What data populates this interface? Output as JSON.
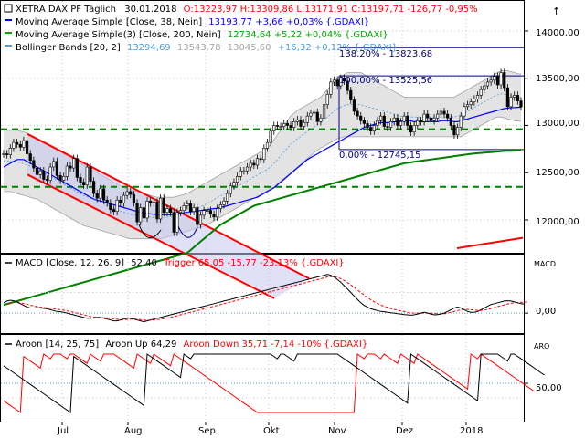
{
  "header": {
    "line1": {
      "prefix": "XETRA DAX PF Täglich",
      "date": "30.01.2018",
      "ohlc": "O:13223,97 H:13309,86 L:13171,91 C:13197,71 -126,77 -0,95%",
      "color_neg": "#ff0000"
    },
    "line2": {
      "label": "Moving Average Simple [Close, 38, Nein]",
      "value": "13193,77 +3,66 +0,03% {.GDAXI}",
      "color": "#0000ff"
    },
    "line3": {
      "label": "Moving Average Simple(3) [Close, 200, Nein]",
      "value": "12734,64 +5,22 +0,04% {.GDAXI}",
      "color": "#00aa00"
    },
    "line4": {
      "label": "Bollinger Bands [20, 2]",
      "v1": "13294,69",
      "v2": "13543,78",
      "v3": "13045,60",
      "rest": "+16,32 +0,12% {.GDAXI}",
      "color": "#4f9dd9"
    }
  },
  "macd_header": {
    "label": "MACD [Close, 12, 26, 9]",
    "macd_value": "52,40",
    "trigger": "Trigger 65,05 -15,77 -23,13% {.GDAXI}",
    "trigger_color": "#ff0000"
  },
  "aroon_header": {
    "label": "Aroon [14, 25, 75]",
    "up": "Aroon Up 64,29",
    "down": "Aroon Down 35,71 -7,14 -10% {.GDAXI}",
    "down_color": "#ff0000"
  },
  "axis": {
    "months": [
      "Jul",
      "Aug",
      "Sep",
      "Okt",
      "Nov",
      "Dez",
      "2018"
    ],
    "price_ticks": [
      "14000,00",
      "13500,00",
      "13000,00",
      "12500,00",
      "12000,00"
    ],
    "macd_title": "MACD",
    "macd_tick": "0,00",
    "aroon_title": "ARO",
    "aroon_tick": "50,00",
    "arrow": "↑"
  },
  "fib": {
    "l1": "138,20% - 13823,68",
    "l2": "100,00% - 13525,56",
    "l3": "0,00% - 12745,15"
  },
  "chart_data": {
    "type": "line",
    "price_ylim": [
      11650,
      14250
    ],
    "levels": {
      "fib_138": 13823.68,
      "fib_100": 13525.56,
      "fib_0": 12745.15,
      "support_upper": 12960,
      "support_lower": 12350
    },
    "price_close": [
      12700,
      12690,
      12760,
      12820,
      12800,
      12770,
      12840,
      12700,
      12630,
      12550,
      12480,
      12520,
      12430,
      12420,
      12560,
      12620,
      12470,
      12420,
      12460,
      12570,
      12550,
      12650,
      12450,
      12400,
      12370,
      12560,
      12410,
      12280,
      12230,
      12330,
      12210,
      12180,
      12110,
      12090,
      12210,
      12180,
      12260,
      12300,
      12270,
      12180,
      11980,
      12130,
      12020,
      12200,
      12180,
      12190,
      12010,
      12230,
      12080,
      12120,
      12080,
      11870,
      12080,
      12100,
      12150,
      12170,
      12090,
      12130,
      11950,
      12050,
      12100,
      12100,
      12060,
      12030,
      12120,
      12160,
      12200,
      12280,
      12360,
      12400,
      12460,
      12520,
      12520,
      12560,
      12600,
      12580,
      12650,
      12640,
      12760,
      12820,
      12940,
      13000,
      12990,
      12990,
      13020,
      13000,
      12980,
      13040,
      13060,
      12990,
      13030,
      13100,
      13130,
      13140,
      13040,
      13080,
      13220,
      13330,
      13460,
      13480,
      13420,
      13500,
      13470,
      13370,
      13270,
      13150,
      13100,
      13050,
      13020,
      12980,
      12940,
      13000,
      13050,
      13100,
      12990,
      12980,
      13040,
      13080,
      13000,
      13040,
      13100,
      13000,
      12930,
      13000,
      13050,
      13040,
      13120,
      13080,
      13050,
      13080,
      13120,
      13150,
      13120,
      13080,
      13000,
      12900,
      12980,
      13100,
      13200,
      13220,
      13250,
      13280,
      13320,
      13380,
      13420,
      13460,
      13480,
      13520,
      13430,
      13560,
      13400,
      13200,
      13300,
      13320,
      13260,
      13198
    ],
    "sma38": [
      12560,
      12580,
      12600,
      12620,
      12640,
      12640,
      12640,
      12620,
      12600,
      12580,
      12560,
      12540,
      12520,
      12500,
      12480,
      12460,
      12440,
      12420,
      12400,
      12380,
      12360,
      12340,
      12320,
      12300,
      12280,
      12260,
      12240,
      12220,
      12210,
      12200,
      12190,
      12180,
      12170,
      12160,
      12150,
      12140,
      12130,
      12120,
      12110,
      12100,
      12090,
      12080,
      12075,
      12070,
      12065,
      12060,
      12055,
      12055,
      12055,
      12055,
      12055,
      12060,
      12065,
      12070,
      12075,
      12080,
      12085,
      12090,
      12095,
      12100,
      12105,
      12110,
      12115,
      12120,
      12125,
      12130,
      12140,
      12150,
      12160,
      12170,
      12180,
      12190,
      12200,
      12210,
      12220,
      12230,
      12240,
      12260,
      12280,
      12300,
      12320,
      12340,
      12370,
      12400,
      12430,
      12460,
      12490,
      12520,
      12550,
      12580,
      12610,
      12640,
      12660,
      12680,
      12700,
      12720,
      12740,
      12760,
      12780,
      12800,
      12820,
      12840,
      12860,
      12880,
      12900,
      12920,
      12940,
      12960,
      12980,
      12990,
      13000,
      13010,
      13020,
      13030,
      13030,
      13030,
      13030,
      13040,
      13040,
      13050,
      13050,
      13050,
      13050,
      13040,
      13040,
      13040,
      13040,
      13040,
      13040,
      13040,
      13040,
      13050,
      13050,
      13050,
      13050,
      13040,
      13040,
      13050,
      13060,
      13070,
      13080,
      13090,
      13100,
      13110,
      13120,
      13130,
      13140,
      13150,
      13160,
      13170,
      13180,
      13185,
      13188,
      13190,
      13192,
      13194
    ],
    "sma200": [
      11100,
      11110,
      11120,
      11130,
      11140,
      11150,
      11160,
      11170,
      11180,
      11190,
      11200,
      11210,
      11220,
      11230,
      11240,
      11250,
      11260,
      11270,
      11280,
      11290,
      11300,
      11310,
      11320,
      11330,
      11340,
      11350,
      11360,
      11370,
      11380,
      11390,
      11400,
      11410,
      11420,
      11430,
      11440,
      11450,
      11460,
      11470,
      11480,
      11490,
      11500,
      11510,
      11520,
      11530,
      11540,
      11550,
      11560,
      11570,
      11580,
      11590,
      11600,
      11610,
      11620,
      11630,
      11640,
      11650,
      11680,
      11710,
      11740,
      11770,
      11800,
      11830,
      11860,
      11890,
      11920,
      11950,
      11970,
      11990,
      12010,
      12030,
      12050,
      12070,
      12090,
      12110,
      12130,
      12150,
      12160,
      12170,
      12180,
      12190,
      12200,
      12210,
      12220,
      12230,
      12240,
      12250,
      12260,
      12270,
      12280,
      12290,
      12300,
      12310,
      12320,
      12330,
      12340,
      12350,
      12360,
      12370,
      12380,
      12390,
      12400,
      12410,
      12420,
      12430,
      12440,
      12450,
      12460,
      12470,
      12480,
      12490,
      12500,
      12510,
      12520,
      12530,
      12540,
      12550,
      12560,
      12570,
      12580,
      12590,
      12600,
      12605,
      12610,
      12615,
      12620,
      12625,
      12630,
      12635,
      12640,
      12645,
      12650,
      12655,
      12660,
      12665,
      12670,
      12675,
      12680,
      12685,
      12690,
      12695,
      12700,
      12703,
      12706,
      12709,
      12712,
      12715,
      12718,
      12721,
      12724,
      12727,
      12730,
      12731,
      12732,
      12733,
      12734,
      12735
    ],
    "bollinger_upper": [
      12950,
      12950,
      12950,
      12950,
      12950,
      12940,
      12930,
      12920,
      12900,
      12880,
      12860,
      12840,
      12820,
      12800,
      12780,
      12760,
      12740,
      12720,
      12700,
      12680,
      12660,
      12640,
      12620,
      12600,
      12580,
      12560,
      12540,
      12520,
      12500,
      12480,
      12460,
      12440,
      12420,
      12400,
      12380,
      12360,
      12340,
      12330,
      12320,
      12310,
      12300,
      12290,
      12280,
      12270,
      12260,
      12250,
      12240,
      12240,
      12240,
      12240,
      12240,
      12240,
      12250,
      12260,
      12270,
      12280,
      12300,
      12320,
      12340,
      12360,
      12380,
      12400,
      12420,
      12440,
      12460,
      12480,
      12500,
      12520,
      12540,
      12560,
      12580,
      12600,
      12620,
      12640,
      12660,
      12680,
      12700,
      12720,
      12740,
      12760,
      12800,
      12850,
      12900,
      12950,
      13000,
      13050,
      13100,
      13130,
      13160,
      13180,
      13200,
      13220,
      13240,
      13260,
      13280,
      13300,
      13340,
      13380,
      13420,
      13460,
      13500,
      13520,
      13540,
      13560,
      13560,
      13560,
      13560,
      13560,
      13540,
      13520,
      13500,
      13480,
      13460,
      13440,
      13420,
      13400,
      13380,
      13360,
      13340,
      13320,
      13300,
      13300,
      13300,
      13300,
      13300,
      13300,
      13300,
      13300,
      13300,
      13300,
      13300,
      13300,
      13300,
      13300,
      13300,
      13300,
      13320,
      13340,
      13360,
      13380,
      13400,
      13420,
      13440,
      13460,
      13480,
      13500,
      13520,
      13540,
      13560,
      13580,
      13580,
      13580,
      13570,
      13560,
      13550,
      13544
    ],
    "bollinger_lower": [
      12300,
      12300,
      12300,
      12290,
      12280,
      12270,
      12260,
      12250,
      12240,
      12230,
      12220,
      12200,
      12180,
      12160,
      12140,
      12120,
      12100,
      12080,
      12060,
      12040,
      12020,
      12000,
      11980,
      11960,
      11940,
      11930,
      11920,
      11910,
      11900,
      11890,
      11880,
      11870,
      11860,
      11850,
      11840,
      11830,
      11820,
      11810,
      11800,
      11800,
      11800,
      11800,
      11800,
      11800,
      11800,
      11800,
      11800,
      11800,
      11810,
      11820,
      11830,
      11840,
      11850,
      11860,
      11870,
      11880,
      11890,
      11900,
      11910,
      11920,
      11930,
      11950,
      11970,
      11990,
      12010,
      12030,
      12050,
      12070,
      12090,
      12110,
      12130,
      12150,
      12170,
      12190,
      12210,
      12230,
      12250,
      12270,
      12290,
      12310,
      12330,
      12350,
      12380,
      12410,
      12440,
      12470,
      12500,
      12530,
      12560,
      12590,
      12620,
      12650,
      12680,
      12710,
      12740,
      12760,
      12780,
      12800,
      12820,
      12840,
      12860,
      12870,
      12880,
      12880,
      12880,
      12880,
      12880,
      12880,
      12880,
      12880,
      12880,
      12880,
      12880,
      12880,
      12880,
      12880,
      12880,
      12880,
      12880,
      12880,
      12880,
      12880,
      12880,
      12880,
      12880,
      12880,
      12880,
      12880,
      12880,
      12880,
      12880,
      12880,
      12880,
      12880,
      12880,
      12880,
      12880,
      12880,
      12900,
      12920,
      12940,
      12960,
      12980,
      13000,
      13020,
      13040,
      13060,
      13080,
      13090,
      13090,
      13080,
      13070,
      13060,
      13050,
      13046,
      13046
    ],
    "channel": {
      "upper_start": [
        0,
        12910
      ],
      "upper_end": [
        100,
        11400
      ],
      "lower_start": [
        0,
        12480
      ],
      "lower_end": [
        100,
        11000
      ]
    },
    "macd": [
      0.6,
      0.7,
      0.75,
      0.72,
      0.65,
      0.55,
      0.45,
      0.35,
      0.3,
      0.3,
      0.32,
      0.3,
      0.28,
      0.25,
      0.2,
      0.15,
      0.1,
      0.08,
      0.05,
      0.0,
      -0.05,
      -0.1,
      -0.15,
      -0.2,
      -0.25,
      -0.3,
      -0.3,
      -0.28,
      -0.25,
      -0.25,
      -0.3,
      -0.35,
      -0.4,
      -0.45,
      -0.45,
      -0.4,
      -0.35,
      -0.3,
      -0.3,
      -0.35,
      -0.4,
      -0.45,
      -0.5,
      -0.45,
      -0.4,
      -0.35,
      -0.3,
      -0.25,
      -0.2,
      -0.15,
      -0.1,
      -0.05,
      0.0,
      0.05,
      0.1,
      0.15,
      0.2,
      0.25,
      0.3,
      0.35,
      0.4,
      0.45,
      0.5,
      0.55,
      0.6,
      0.65,
      0.7,
      0.75,
      0.8,
      0.85,
      0.9,
      0.95,
      1.0,
      1.05,
      1.1,
      1.15,
      1.2,
      1.25,
      1.3,
      1.35,
      1.4,
      1.45,
      1.5,
      1.55,
      1.6,
      1.65,
      1.7,
      1.75,
      1.8,
      1.85,
      1.9,
      1.95,
      2.0,
      2.05,
      2.1,
      2.15,
      2.2,
      2.25,
      2.2,
      2.1,
      1.95,
      1.8,
      1.6,
      1.4,
      1.2,
      1.0,
      0.8,
      0.6,
      0.45,
      0.35,
      0.25,
      0.2,
      0.15,
      0.1,
      0.08,
      0.05,
      0.02,
      0.0,
      -0.03,
      -0.05,
      -0.08,
      -0.1,
      -0.12,
      -0.1,
      -0.05,
      0.0,
      0.05,
      0.0,
      -0.05,
      -0.1,
      -0.08,
      -0.05,
      0.0,
      0.1,
      0.2,
      0.3,
      0.35,
      0.3,
      0.2,
      0.1,
      0.05,
      0.05,
      0.1,
      0.2,
      0.3,
      0.4,
      0.5,
      0.55,
      0.6,
      0.65,
      0.7,
      0.72,
      0.7,
      0.65,
      0.6,
      0.55,
      0.52
    ],
    "macd_trigger": [
      0.5,
      0.55,
      0.6,
      0.62,
      0.62,
      0.6,
      0.56,
      0.52,
      0.46,
      0.42,
      0.38,
      0.35,
      0.33,
      0.31,
      0.29,
      0.26,
      0.23,
      0.2,
      0.17,
      0.13,
      0.09,
      0.05,
      0.0,
      -0.05,
      -0.1,
      -0.15,
      -0.2,
      -0.23,
      -0.25,
      -0.26,
      -0.27,
      -0.28,
      -0.3,
      -0.33,
      -0.36,
      -0.38,
      -0.38,
      -0.37,
      -0.35,
      -0.35,
      -0.36,
      -0.38,
      -0.4,
      -0.41,
      -0.41,
      -0.4,
      -0.38,
      -0.35,
      -0.32,
      -0.28,
      -0.24,
      -0.2,
      -0.15,
      -0.1,
      -0.05,
      0.0,
      0.05,
      0.1,
      0.15,
      0.2,
      0.25,
      0.3,
      0.35,
      0.4,
      0.45,
      0.5,
      0.55,
      0.6,
      0.65,
      0.7,
      0.75,
      0.8,
      0.85,
      0.9,
      0.95,
      1.0,
      1.05,
      1.1,
      1.15,
      1.2,
      1.25,
      1.3,
      1.35,
      1.4,
      1.45,
      1.5,
      1.55,
      1.6,
      1.65,
      1.7,
      1.75,
      1.8,
      1.85,
      1.9,
      1.95,
      2.0,
      2.05,
      2.1,
      2.12,
      2.12,
      2.08,
      2.0,
      1.9,
      1.78,
      1.64,
      1.5,
      1.35,
      1.2,
      1.05,
      0.9,
      0.78,
      0.66,
      0.56,
      0.47,
      0.4,
      0.33,
      0.27,
      0.22,
      0.17,
      0.13,
      0.09,
      0.05,
      0.02,
      0.0,
      0.0,
      0.0,
      0.0,
      0.0,
      0.0,
      -0.02,
      -0.04,
      -0.05,
      -0.04,
      0.0,
      0.05,
      0.1,
      0.15,
      0.2,
      0.22,
      0.22,
      0.2,
      0.18,
      0.16,
      0.16,
      0.18,
      0.22,
      0.27,
      0.32,
      0.38,
      0.43,
      0.48,
      0.53,
      0.57,
      0.6,
      0.62,
      0.63,
      0.64,
      0.65
    ],
    "macd_ylim": [
      -1.0,
      2.5
    ],
    "aroon_up": [
      80,
      76,
      72,
      68,
      64,
      60,
      56,
      52,
      48,
      44,
      40,
      36,
      32,
      28,
      24,
      20,
      16,
      12,
      8,
      4,
      0,
      96,
      92,
      88,
      84,
      80,
      76,
      72,
      68,
      64,
      60,
      56,
      52,
      48,
      44,
      40,
      36,
      32,
      28,
      24,
      20,
      16,
      12,
      100,
      96,
      92,
      88,
      84,
      80,
      76,
      72,
      68,
      64,
      60,
      100,
      96,
      92,
      100,
      100,
      100,
      100,
      100,
      100,
      100,
      100,
      100,
      100,
      100,
      100,
      100,
      100,
      100,
      100,
      100,
      100,
      100,
      100,
      100,
      100,
      100,
      100,
      96,
      92,
      100,
      100,
      96,
      92,
      88,
      100,
      100,
      100,
      100,
      100,
      100,
      100,
      100,
      100,
      100,
      100,
      100,
      100,
      96,
      92,
      88,
      84,
      80,
      76,
      72,
      68,
      64,
      60,
      56,
      52,
      48,
      44,
      40,
      36,
      32,
      28,
      24,
      20,
      16,
      100,
      96,
      92,
      88,
      84,
      80,
      76,
      72,
      68,
      64,
      60,
      56,
      52,
      48,
      44,
      40,
      36,
      32,
      28,
      24,
      20,
      100,
      100,
      100,
      100,
      100,
      100,
      96,
      92,
      88,
      100,
      100,
      96,
      92,
      88,
      84,
      80,
      76,
      72,
      68,
      64
    ],
    "aroon_down": [
      20,
      16,
      12,
      8,
      4,
      0,
      96,
      92,
      88,
      84,
      80,
      76,
      100,
      96,
      92,
      100,
      100,
      100,
      96,
      92,
      100,
      100,
      96,
      92,
      88,
      84,
      100,
      96,
      92,
      88,
      100,
      100,
      100,
      100,
      96,
      92,
      88,
      84,
      80,
      76,
      100,
      96,
      92,
      88,
      84,
      100,
      96,
      92,
      88,
      84,
      80,
      100,
      96,
      92,
      88,
      84,
      80,
      76,
      72,
      68,
      64,
      60,
      56,
      52,
      48,
      44,
      40,
      36,
      32,
      28,
      24,
      20,
      16,
      12,
      8,
      4,
      0,
      0,
      0,
      0,
      0,
      0,
      0,
      0,
      0,
      0,
      0,
      0,
      0,
      0,
      0,
      0,
      0,
      0,
      0,
      0,
      0,
      0,
      0,
      0,
      0,
      0,
      0,
      0,
      0,
      0,
      100,
      96,
      92,
      100,
      100,
      100,
      96,
      92,
      100,
      96,
      92,
      88,
      84,
      100,
      96,
      92,
      88,
      84,
      100,
      96,
      92,
      88,
      84,
      80,
      76,
      72,
      68,
      64,
      60,
      56,
      52,
      48,
      44,
      40,
      100,
      96,
      92,
      100,
      96,
      92,
      88,
      84,
      80,
      76,
      72,
      68,
      64,
      60,
      56,
      52,
      48,
      44,
      40,
      36
    ],
    "aroon_ylim": [
      0,
      100
    ]
  }
}
